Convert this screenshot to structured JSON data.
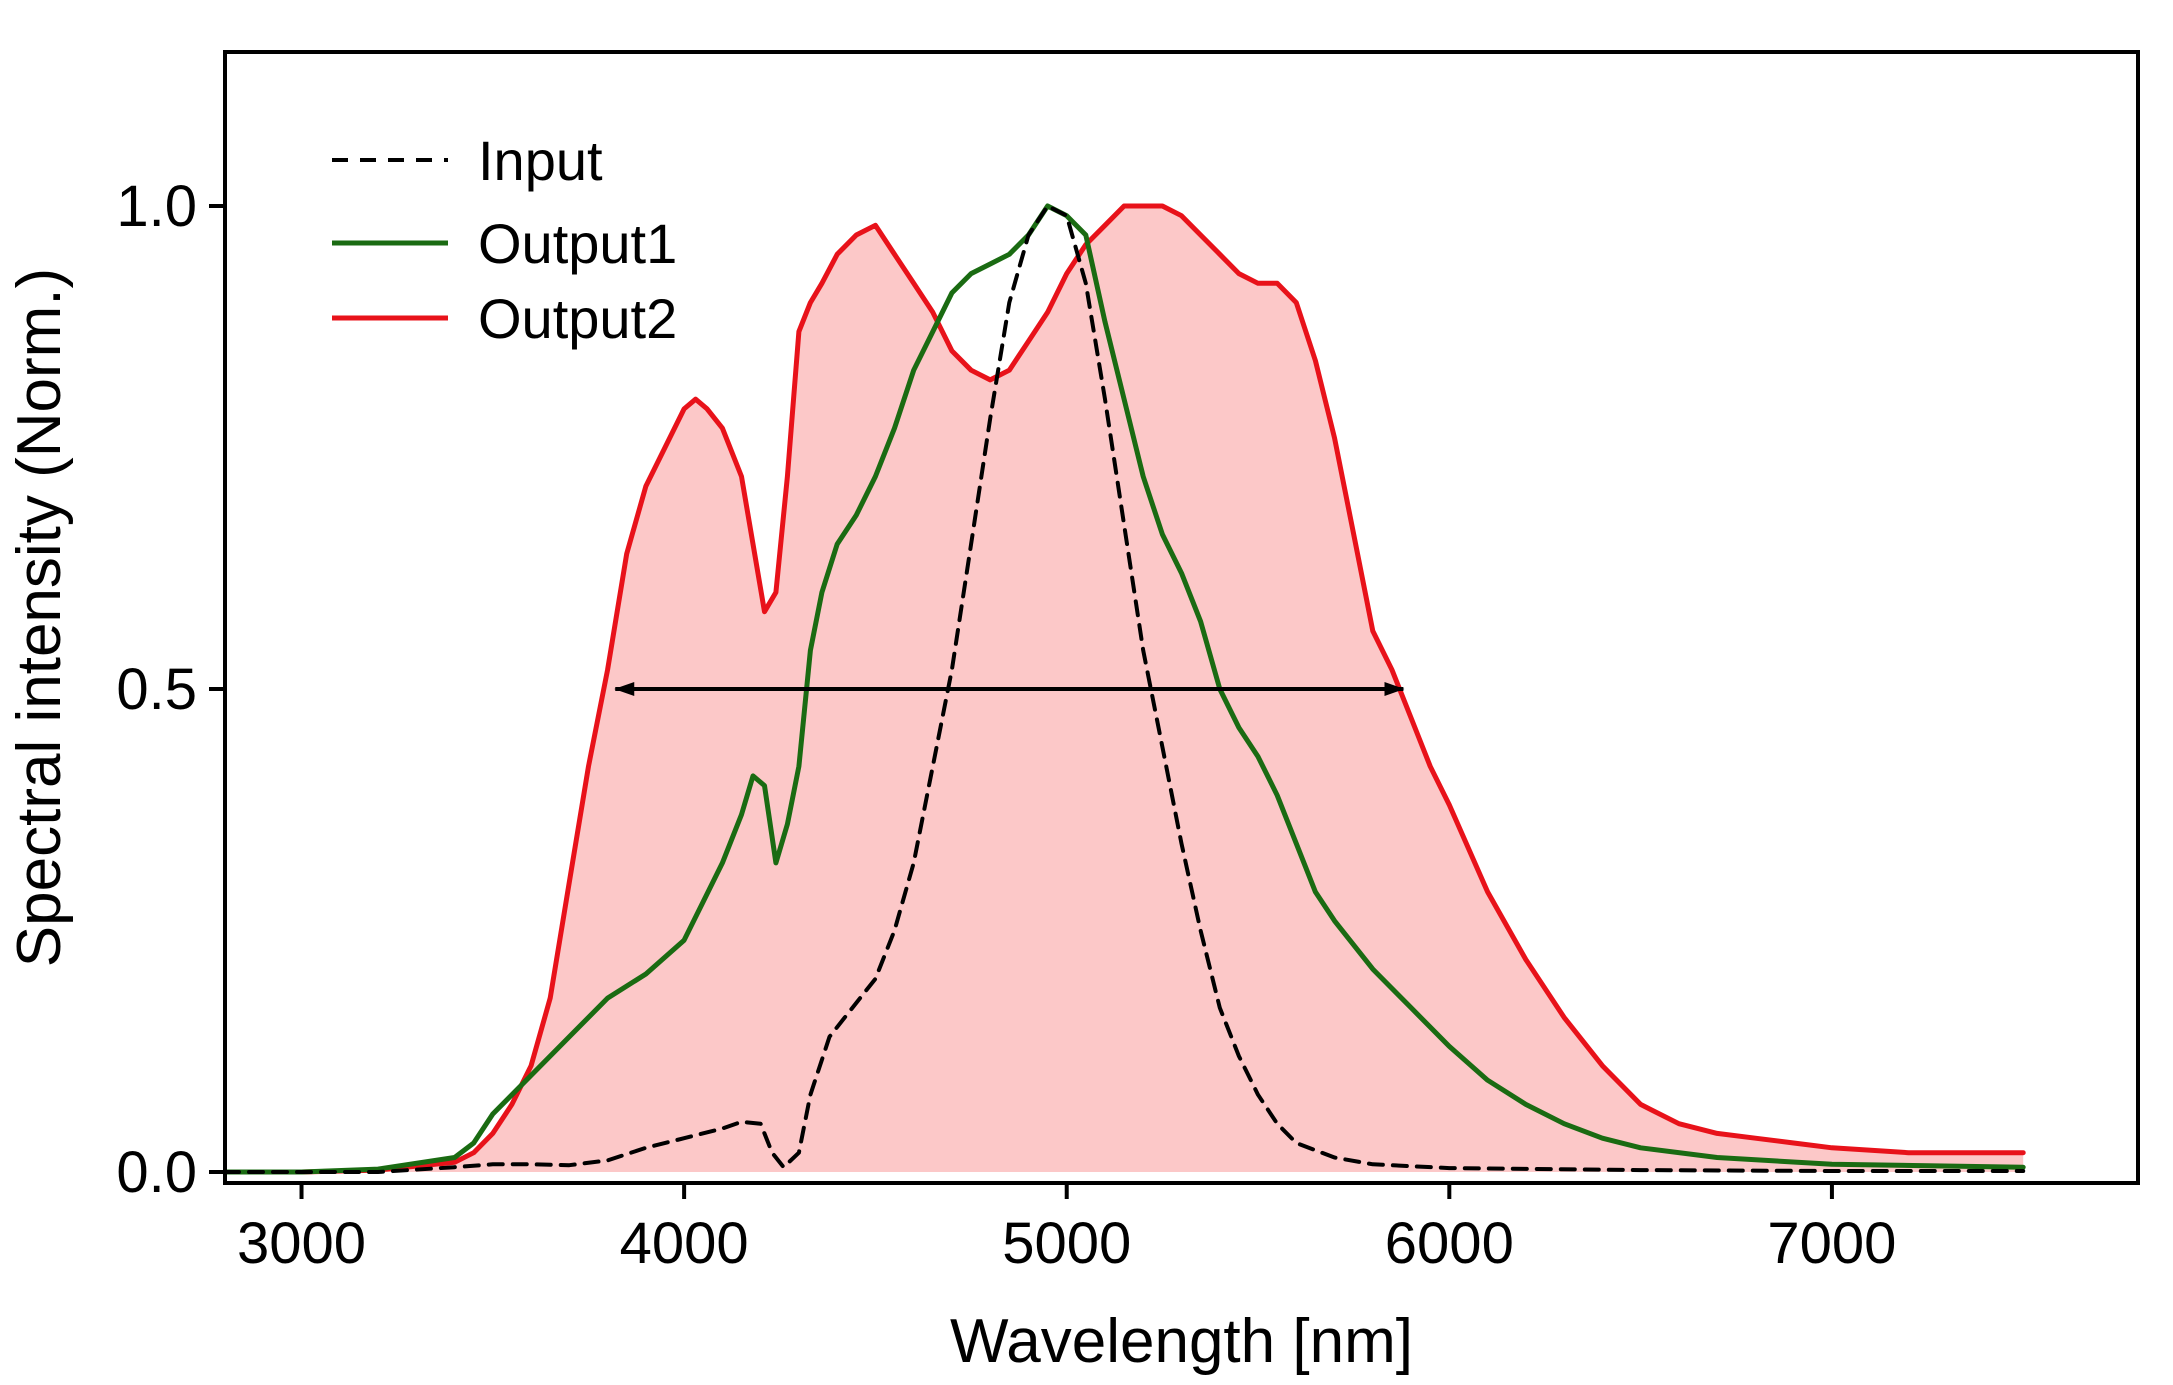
{
  "chart_data": {
    "type": "line",
    "title": "",
    "xlabel": "Wavelength [nm]",
    "ylabel": "Spectral intensity (Norm.)",
    "xlim": [
      2800,
      7800
    ],
    "ylim": [
      0,
      1.0
    ],
    "xticks": [
      "3000",
      "4000",
      "5000",
      "6000",
      "7000"
    ],
    "xtick_values": [
      3000,
      4000,
      5000,
      6000,
      7000
    ],
    "yticks": [
      "0.0",
      "0.5",
      "1.0"
    ],
    "ytick_values": [
      0.0,
      0.5,
      1.0
    ],
    "grid": false,
    "legend_position": "top-left",
    "annotation": {
      "type": "double-arrow",
      "y": 0.5,
      "x_start": 3820,
      "x_end": 5880
    },
    "series": [
      {
        "name": "Input",
        "color": "#000000",
        "style": "dashed",
        "x": [
          2800,
          3000,
          3200,
          3400,
          3500,
          3600,
          3700,
          3800,
          3900,
          4000,
          4100,
          4150,
          4200,
          4230,
          4260,
          4300,
          4330,
          4380,
          4420,
          4460,
          4500,
          4550,
          4600,
          4650,
          4700,
          4750,
          4800,
          4850,
          4900,
          4950,
          5000,
          5050,
          5100,
          5150,
          5200,
          5250,
          5300,
          5350,
          5400,
          5450,
          5500,
          5550,
          5600,
          5700,
          5800,
          6000,
          6500,
          7000,
          7500
        ],
        "y": [
          0.0,
          0.0,
          0.0,
          0.005,
          0.008,
          0.008,
          0.007,
          0.012,
          0.025,
          0.035,
          0.045,
          0.052,
          0.05,
          0.02,
          0.005,
          0.02,
          0.08,
          0.14,
          0.16,
          0.18,
          0.2,
          0.25,
          0.32,
          0.42,
          0.52,
          0.65,
          0.78,
          0.9,
          0.97,
          1.0,
          0.99,
          0.92,
          0.8,
          0.67,
          0.54,
          0.44,
          0.34,
          0.25,
          0.17,
          0.12,
          0.08,
          0.05,
          0.03,
          0.015,
          0.008,
          0.004,
          0.002,
          0.001,
          0.001
        ]
      },
      {
        "name": "Output1",
        "color": "#1a6b12",
        "style": "solid",
        "x": [
          2800,
          3000,
          3200,
          3400,
          3450,
          3500,
          3600,
          3700,
          3800,
          3900,
          4000,
          4050,
          4100,
          4150,
          4180,
          4210,
          4240,
          4270,
          4300,
          4330,
          4360,
          4400,
          4450,
          4500,
          4550,
          4600,
          4650,
          4700,
          4750,
          4800,
          4850,
          4900,
          4950,
          5000,
          5050,
          5100,
          5150,
          5200,
          5250,
          5300,
          5350,
          5400,
          5450,
          5500,
          5550,
          5600,
          5650,
          5700,
          5800,
          5900,
          6000,
          6100,
          6200,
          6300,
          6400,
          6500,
          6700,
          7000,
          7500
        ],
        "y": [
          0.0,
          0.0,
          0.003,
          0.015,
          0.03,
          0.06,
          0.1,
          0.14,
          0.18,
          0.205,
          0.24,
          0.28,
          0.32,
          0.37,
          0.41,
          0.4,
          0.32,
          0.36,
          0.42,
          0.54,
          0.6,
          0.65,
          0.68,
          0.72,
          0.77,
          0.83,
          0.87,
          0.91,
          0.93,
          0.94,
          0.95,
          0.97,
          1.0,
          0.99,
          0.97,
          0.88,
          0.8,
          0.72,
          0.66,
          0.62,
          0.57,
          0.5,
          0.46,
          0.43,
          0.39,
          0.34,
          0.29,
          0.26,
          0.21,
          0.17,
          0.13,
          0.095,
          0.07,
          0.05,
          0.035,
          0.025,
          0.015,
          0.008,
          0.005
        ]
      },
      {
        "name": "Output2",
        "color": "#e8121a",
        "style": "solid",
        "fill": "#fcc8c8",
        "x": [
          2800,
          3000,
          3200,
          3400,
          3450,
          3500,
          3550,
          3600,
          3650,
          3700,
          3750,
          3800,
          3850,
          3900,
          3950,
          4000,
          4030,
          4060,
          4100,
          4150,
          4180,
          4210,
          4240,
          4270,
          4300,
          4330,
          4360,
          4400,
          4450,
          4500,
          4550,
          4600,
          4650,
          4700,
          4750,
          4800,
          4850,
          4900,
          4950,
          5000,
          5050,
          5100,
          5150,
          5200,
          5250,
          5300,
          5350,
          5400,
          5450,
          5500,
          5550,
          5600,
          5650,
          5700,
          5750,
          5800,
          5850,
          5900,
          5950,
          6000,
          6100,
          6200,
          6300,
          6400,
          6500,
          6600,
          6700,
          6800,
          6900,
          7000,
          7200,
          7500
        ],
        "y": [
          0.0,
          0.0,
          0.002,
          0.01,
          0.02,
          0.04,
          0.07,
          0.11,
          0.18,
          0.3,
          0.42,
          0.52,
          0.64,
          0.71,
          0.75,
          0.79,
          0.8,
          0.79,
          0.77,
          0.72,
          0.65,
          0.58,
          0.6,
          0.72,
          0.87,
          0.9,
          0.92,
          0.95,
          0.97,
          0.98,
          0.95,
          0.92,
          0.89,
          0.85,
          0.83,
          0.82,
          0.83,
          0.86,
          0.89,
          0.93,
          0.96,
          0.98,
          1.0,
          1.0,
          1.0,
          0.99,
          0.97,
          0.95,
          0.93,
          0.92,
          0.92,
          0.9,
          0.84,
          0.76,
          0.66,
          0.56,
          0.52,
          0.47,
          0.42,
          0.38,
          0.29,
          0.22,
          0.16,
          0.11,
          0.07,
          0.05,
          0.04,
          0.035,
          0.03,
          0.025,
          0.02,
          0.02
        ]
      }
    ]
  }
}
